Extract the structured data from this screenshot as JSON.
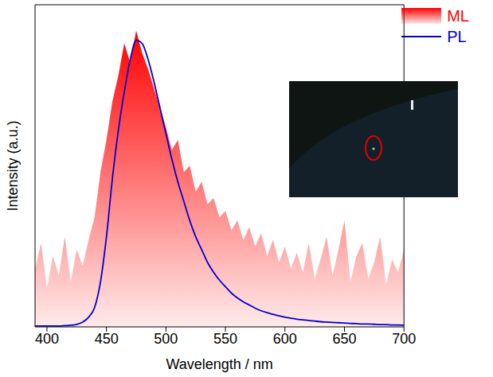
{
  "chart_data": {
    "type": "line",
    "x_label": "Wavelength / nm",
    "y_label": "Intensity (a.u.)",
    "x": [
      390,
      395,
      400,
      405,
      410,
      415,
      420,
      425,
      430,
      435,
      440,
      445,
      450,
      455,
      460,
      465,
      470,
      475,
      480,
      485,
      490,
      495,
      500,
      505,
      510,
      515,
      520,
      525,
      530,
      535,
      540,
      545,
      550,
      555,
      560,
      565,
      570,
      575,
      580,
      585,
      590,
      595,
      600,
      605,
      610,
      615,
      620,
      625,
      630,
      635,
      640,
      645,
      650,
      655,
      660,
      665,
      670,
      675,
      680,
      685,
      690,
      695,
      700
    ],
    "series": [
      {
        "name": "ML",
        "type": "area",
        "color": "#ff0000",
        "values": [
          18,
          26,
          12,
          22,
          16,
          28,
          14,
          24,
          19,
          27,
          34,
          48,
          58,
          70,
          78,
          88,
          82,
          92,
          85,
          80,
          74,
          68,
          62,
          55,
          58,
          48,
          50,
          42,
          45,
          38,
          40,
          34,
          36,
          30,
          33,
          27,
          31,
          25,
          29,
          22,
          27,
          20,
          25,
          18,
          23,
          17,
          26,
          15,
          21,
          28,
          16,
          24,
          33,
          14,
          22,
          26,
          15,
          20,
          28,
          13,
          21,
          17,
          24
        ]
      },
      {
        "name": "PL",
        "type": "line",
        "color": "#0000cc",
        "values": [
          0.3,
          0.3,
          0.3,
          0.3,
          0.3,
          0.4,
          0.5,
          0.8,
          1.5,
          3,
          6,
          14,
          28,
          46,
          61,
          73,
          83,
          89,
          88,
          83,
          76,
          68,
          60,
          52,
          45,
          39,
          33,
          28,
          24,
          20,
          17,
          14.5,
          12.5,
          10.5,
          9,
          7.8,
          6.8,
          5.8,
          5,
          4.4,
          3.9,
          3.4,
          3,
          2.7,
          2.4,
          2.2,
          2,
          1.8,
          1.6,
          1.5,
          1.4,
          1.3,
          1.2,
          1.1,
          1,
          0.9,
          0.9,
          0.8,
          0.7,
          0.7,
          0.6,
          0.6,
          0.5
        ]
      }
    ],
    "xlim": [
      390,
      700
    ],
    "xticks": [
      400,
      450,
      500,
      550,
      600,
      650,
      700
    ],
    "ylim": [
      0,
      100
    ],
    "tick_labels": "x",
    "legend": "top-right"
  }
}
